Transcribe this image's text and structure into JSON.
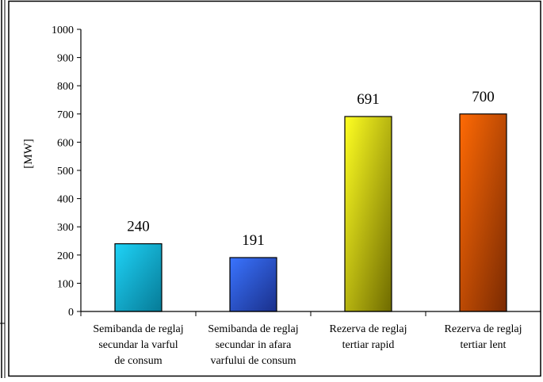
{
  "chart_data": {
    "type": "bar",
    "title": "",
    "xlabel": "",
    "ylabel": "[MW]",
    "ylim": [
      0,
      1000
    ],
    "yticks": [
      0,
      100,
      200,
      300,
      400,
      500,
      600,
      700,
      800,
      900,
      1000
    ],
    "grid": false,
    "legend": "none",
    "categories": [
      [
        "Semibanda de reglaj",
        "secundar la varful",
        "de consum"
      ],
      [
        "Semibanda de reglaj",
        "secundar in afara",
        "varfului de consum"
      ],
      [
        "Rezerva de reglaj",
        "tertiar rapid"
      ],
      [
        "Rezerva de reglaj",
        "tertiar lent"
      ]
    ],
    "values": [
      240,
      191,
      691,
      700
    ],
    "data_labels": [
      "240",
      "191",
      "691",
      "700"
    ],
    "bar_colors": [
      [
        "#1fd3f7",
        "#067a96"
      ],
      [
        "#3a74ff",
        "#1a2f8a"
      ],
      [
        "#ffff22",
        "#6e6a00"
      ],
      [
        "#ff6a05",
        "#7a2a02"
      ]
    ]
  }
}
